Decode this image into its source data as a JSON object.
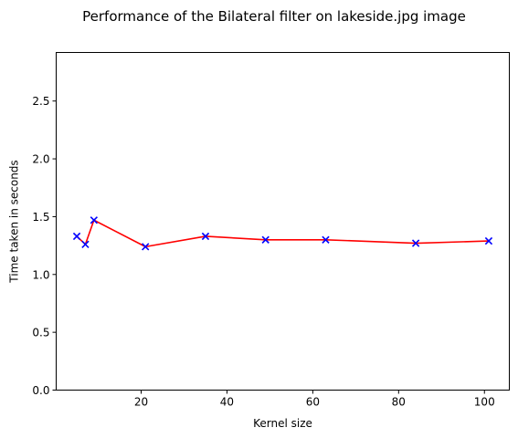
{
  "chart_data": {
    "type": "line",
    "title": "Performance of the Bilateral filter on lakeside.jpg image",
    "xlabel": "Kernel size",
    "ylabel": "Time taken in seconds",
    "xlim": [
      0.2,
      105.8
    ],
    "ylim": [
      0.0,
      2.92
    ],
    "xticks": [
      20,
      40,
      60,
      80,
      100
    ],
    "xtick_labels": [
      "20",
      "40",
      "60",
      "80",
      "100"
    ],
    "yticks": [
      0.0,
      0.5,
      1.0,
      1.5,
      2.0,
      2.5
    ],
    "ytick_labels": [
      "0.0",
      "0.5",
      "1.0",
      "1.5",
      "2.0",
      "2.5"
    ],
    "grid": false,
    "series": [
      {
        "x": [
          5,
          7,
          9,
          21,
          35,
          49,
          63,
          84,
          101
        ],
        "y": [
          1.33,
          1.26,
          1.47,
          1.24,
          1.33,
          1.3,
          1.3,
          1.27,
          1.29
        ],
        "line_color": "#ff0000",
        "marker": "x",
        "marker_color": "#0000ff"
      }
    ]
  }
}
